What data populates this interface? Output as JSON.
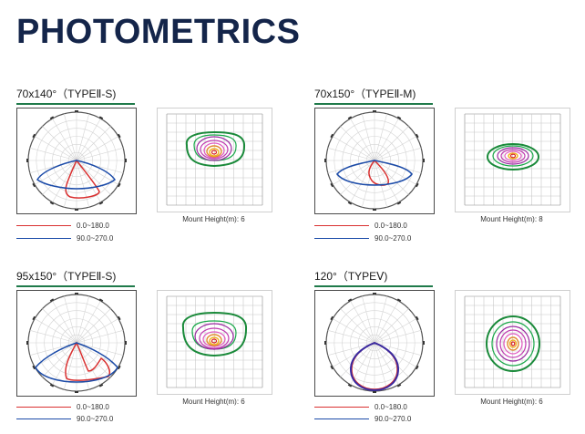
{
  "page_title": "PHOTOMETRICS",
  "colors": {
    "red_curve": "#d93030",
    "blue_curve": "#1a4aa8",
    "title": "#14254a",
    "underline": "#1f7a4a",
    "purple_curve": "#5a2aa0"
  },
  "blocks": [
    {
      "title": "70x140°（TYPEⅡ-S)",
      "mount_label": "Mount Height(m):",
      "mount_value": "6",
      "legend": [
        {
          "label": "0.0~180.0"
        },
        {
          "label": "90.0~270.0"
        }
      ]
    },
    {
      "title": "70x150°（TYPEⅡ-M)",
      "mount_label": "Mount Height(m):",
      "mount_value": "8",
      "legend": [
        {
          "label": "0.0~180.0"
        },
        {
          "label": "90.0~270.0"
        }
      ]
    },
    {
      "title": "95x150°（TYPEⅡ-S)",
      "mount_label": "Mount Height(m):",
      "mount_value": "6",
      "legend": [
        {
          "label": "0.0~180.0"
        },
        {
          "label": "90.0~270.0"
        }
      ]
    },
    {
      "title": "120°（TYPEⅤ)",
      "mount_label": "Mount Height(m):",
      "mount_value": "6",
      "legend": [
        {
          "label": "0.0~180.0"
        },
        {
          "label": "90.0~270.0"
        }
      ]
    }
  ]
}
